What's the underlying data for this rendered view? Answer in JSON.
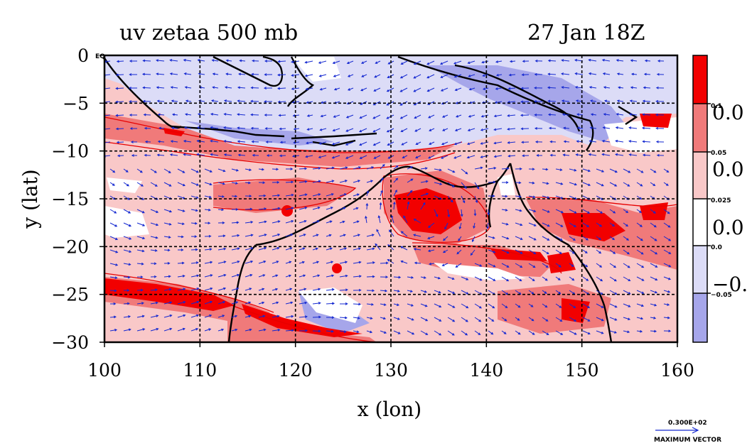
{
  "title_left": "uv zetaa 500 mb",
  "title_right": "27 Jan 18Z",
  "chart_data": {
    "type": "heatmap",
    "variable": "zetaa",
    "level": "500 mb",
    "xlabel": "x (lon)",
    "ylabel": "y (lat)",
    "xlim": [
      100,
      160
    ],
    "ylim": [
      -30,
      0
    ],
    "xticks": [
      "100",
      "110",
      "120",
      "130",
      "140",
      "150",
      "160"
    ],
    "yticks": [
      "0",
      "−5",
      "−10",
      "−15",
      "−20",
      "−25",
      "−30"
    ],
    "grid": true,
    "corner_label": "EQ",
    "colorbar": {
      "levels": [
        "0.1",
        "0.05",
        "0.025",
        "0.0",
        "−0.05"
      ],
      "big_labels": [
        "0.0",
        "0.0",
        "0.0",
        "−0."
      ],
      "colors": [
        "#f20000",
        "#f07a7a",
        "#f9c8c8",
        "#ffffff",
        "#dcdcf7",
        "#a6a6ea"
      ]
    },
    "colors": {
      "strong_pos": "#f20000",
      "mid_pos": "#f07a7a",
      "weak_pos": "#f9c8c8",
      "neutral": "#ffffff",
      "weak_neg": "#dcdcf7",
      "strong_neg": "#a6a6ea",
      "vector": "#1428d0",
      "coast": "#000000"
    },
    "vector_key": {
      "value": "0.300E+02",
      "label": "MAXIMUM VECTOR"
    }
  }
}
